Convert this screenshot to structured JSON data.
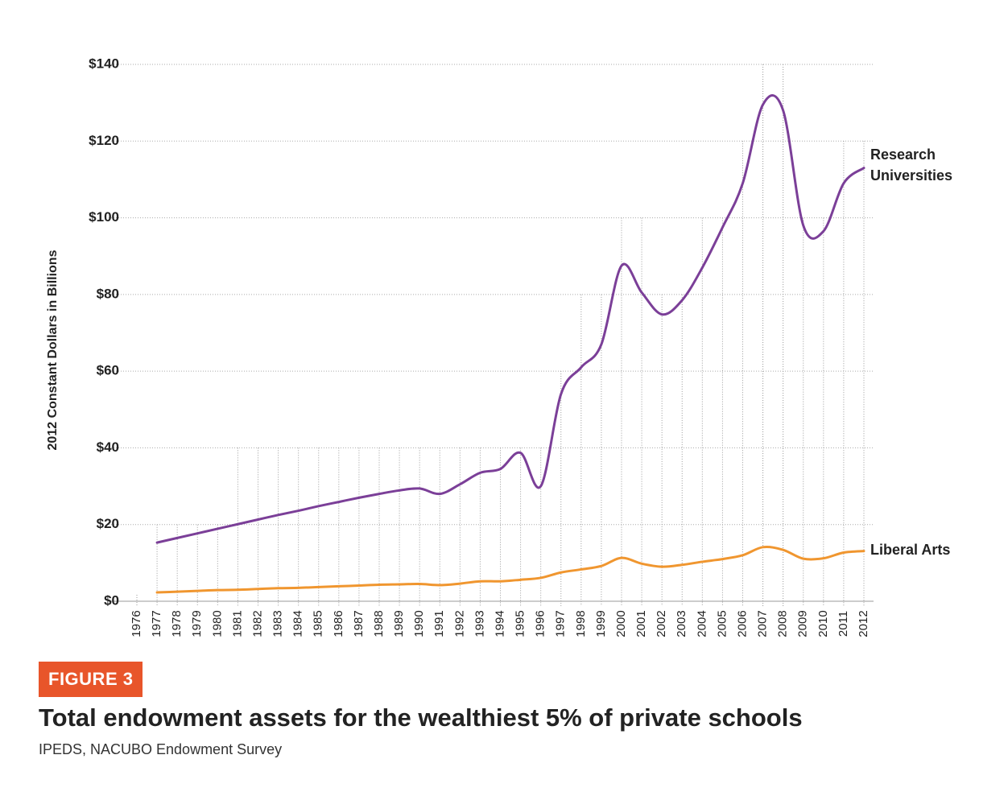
{
  "chart_data": {
    "type": "line",
    "figure_label": "FIGURE 3",
    "title": "Total endowment assets for the wealthiest 5% of private schools",
    "source": "IPEDS, NACUBO Endowment Survey",
    "y_label": "2012 Constant Dollars in Billions",
    "categories": [
      "1976",
      "1977",
      "1978",
      "1979",
      "1980",
      "1981",
      "1982",
      "1983",
      "1984",
      "1985",
      "1986",
      "1987",
      "1988",
      "1989",
      "1990",
      "1991",
      "1992",
      "1993",
      "1994",
      "1995",
      "1996",
      "1997",
      "1998",
      "1999",
      "2000",
      "2001",
      "2002",
      "2003",
      "2004",
      "2005",
      "2006",
      "2007",
      "2008",
      "2009",
      "2010",
      "2011",
      "2012"
    ],
    "series": [
      {
        "name": "Research Universities",
        "color": "#7b3f98",
        "values": [
          null,
          15.3,
          16.5,
          17.7,
          18.9,
          20.1,
          21.3,
          22.5,
          23.6,
          24.8,
          25.9,
          27,
          28,
          28.9,
          29.4,
          28,
          30.5,
          33.5,
          34.5,
          38.7,
          30,
          54,
          61,
          67,
          87.5,
          80.5,
          74.8,
          78.5,
          87,
          97.5,
          109,
          129.5,
          128,
          98,
          96.5,
          109,
          113
        ]
      },
      {
        "name": "Liberal Arts",
        "color": "#f0962f",
        "values": [
          null,
          2.3,
          2.5,
          2.7,
          2.9,
          3.0,
          3.2,
          3.4,
          3.5,
          3.7,
          3.9,
          4.1,
          4.3,
          4.4,
          4.5,
          4.2,
          4.6,
          5.2,
          5.2,
          5.6,
          6.1,
          7.5,
          8.3,
          9.2,
          11.3,
          9.8,
          9.0,
          9.5,
          10.3,
          11.0,
          12.0,
          14.1,
          13.4,
          11.1,
          11.2,
          12.7,
          13.1
        ]
      }
    ],
    "ylim": [
      0,
      140
    ],
    "yticks": [
      {
        "value": 0,
        "label": "$0"
      },
      {
        "value": 20,
        "label": "$20"
      },
      {
        "value": 40,
        "label": "$40"
      },
      {
        "value": 60,
        "label": "$60"
      },
      {
        "value": 80,
        "label": "$80"
      },
      {
        "value": 100,
        "label": "$100"
      },
      {
        "value": 120,
        "label": "$120"
      },
      {
        "value": 140,
        "label": "$140"
      }
    ],
    "grid": true
  }
}
